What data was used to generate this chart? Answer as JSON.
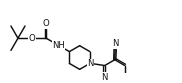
{
  "bg_color": "white",
  "line_color": "#111111",
  "line_width": 1.05,
  "font_size": 5.8,
  "figsize": [
    1.82,
    0.83
  ],
  "dpi": 100,
  "xlim": [
    -0.5,
    19.5
  ],
  "ylim": [
    2.5,
    9.5
  ]
}
